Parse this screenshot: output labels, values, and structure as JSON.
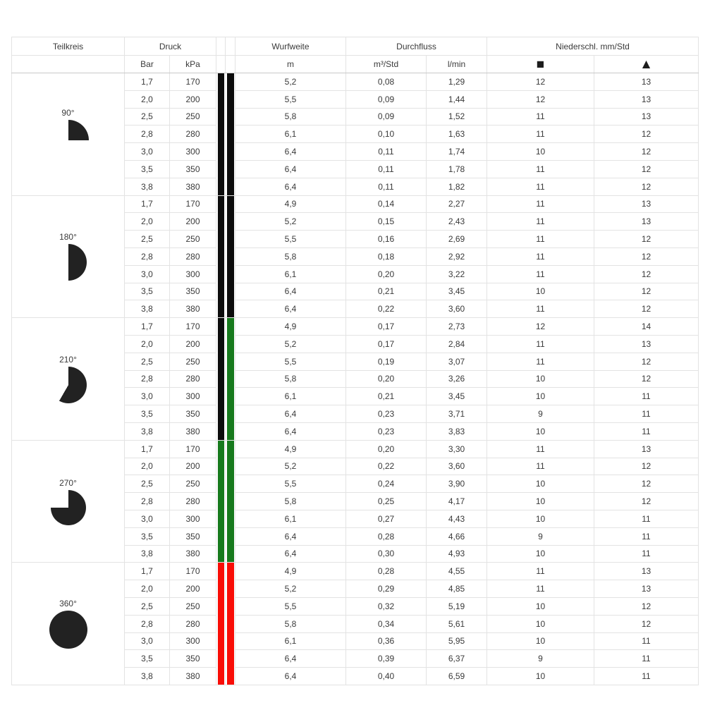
{
  "page": {
    "background": "#ffffff"
  },
  "table": {
    "header": {
      "teilkreis": "Teilkreis",
      "druck": "Druck",
      "wurfweite": "Wurfweite",
      "durchfluss": "Durchfluss",
      "niederschlag": "Niederschl. mm/Std",
      "sub": {
        "bar": "Bar",
        "kpa": "kPa",
        "m": "m",
        "m3std": "m³/Std",
        "lmin": "l/min"
      },
      "symbols": {
        "square": "■",
        "triangle": "▲"
      }
    },
    "colors": {
      "black": "#0c0c0c",
      "green": "#177a1d",
      "red": "#f90d06",
      "icon": "#222222",
      "grid": "#e3e3e3",
      "section_line": "#c9c9c9",
      "text": "#3a3a3a"
    },
    "sections": [
      {
        "angle": "90°",
        "icon": "sector-90-icon",
        "sweep_deg": 90,
        "bar_colors": [
          "black",
          "black"
        ],
        "rows": [
          [
            "1,7",
            "170",
            "5,2",
            "0,08",
            "1,29",
            "12",
            "13"
          ],
          [
            "2,0",
            "200",
            "5,5",
            "0,09",
            "1,44",
            "12",
            "13"
          ],
          [
            "2,5",
            "250",
            "5,8",
            "0,09",
            "1,52",
            "11",
            "13"
          ],
          [
            "2,8",
            "280",
            "6,1",
            "0,10",
            "1,63",
            "11",
            "12"
          ],
          [
            "3,0",
            "300",
            "6,4",
            "0,11",
            "1,74",
            "10",
            "12"
          ],
          [
            "3,5",
            "350",
            "6,4",
            "0,11",
            "1,78",
            "11",
            "12"
          ],
          [
            "3,8",
            "380",
            "6,4",
            "0,11",
            "1,82",
            "11",
            "12"
          ]
        ]
      },
      {
        "angle": "180°",
        "icon": "sector-180-icon",
        "sweep_deg": 180,
        "bar_colors": [
          "black",
          "black"
        ],
        "rows": [
          [
            "1,7",
            "170",
            "4,9",
            "0,14",
            "2,27",
            "11",
            "13"
          ],
          [
            "2,0",
            "200",
            "5,2",
            "0,15",
            "2,43",
            "11",
            "13"
          ],
          [
            "2,5",
            "250",
            "5,5",
            "0,16",
            "2,69",
            "11",
            "12"
          ],
          [
            "2,8",
            "280",
            "5,8",
            "0,18",
            "2,92",
            "11",
            "12"
          ],
          [
            "3,0",
            "300",
            "6,1",
            "0,20",
            "3,22",
            "11",
            "12"
          ],
          [
            "3,5",
            "350",
            "6,4",
            "0,21",
            "3,45",
            "10",
            "12"
          ],
          [
            "3,8",
            "380",
            "6,4",
            "0,22",
            "3,60",
            "11",
            "12"
          ]
        ]
      },
      {
        "angle": "210°",
        "icon": "sector-210-icon",
        "sweep_deg": 210,
        "bar_colors": [
          "black",
          "green"
        ],
        "rows": [
          [
            "1,7",
            "170",
            "4,9",
            "0,17",
            "2,73",
            "12",
            "14"
          ],
          [
            "2,0",
            "200",
            "5,2",
            "0,17",
            "2,84",
            "11",
            "13"
          ],
          [
            "2,5",
            "250",
            "5,5",
            "0,19",
            "3,07",
            "11",
            "12"
          ],
          [
            "2,8",
            "280",
            "5,8",
            "0,20",
            "3,26",
            "10",
            "12"
          ],
          [
            "3,0",
            "300",
            "6,1",
            "0,21",
            "3,45",
            "10",
            "11"
          ],
          [
            "3,5",
            "350",
            "6,4",
            "0,23",
            "3,71",
            "9",
            "11"
          ],
          [
            "3,8",
            "380",
            "6,4",
            "0,23",
            "3,83",
            "10",
            "11"
          ]
        ]
      },
      {
        "angle": "270°",
        "icon": "sector-270-icon",
        "sweep_deg": 270,
        "bar_colors": [
          "green",
          "green"
        ],
        "rows": [
          [
            "1,7",
            "170",
            "4,9",
            "0,20",
            "3,30",
            "11",
            "13"
          ],
          [
            "2,0",
            "200",
            "5,2",
            "0,22",
            "3,60",
            "11",
            "12"
          ],
          [
            "2,5",
            "250",
            "5,5",
            "0,24",
            "3,90",
            "10",
            "12"
          ],
          [
            "2,8",
            "280",
            "5,8",
            "0,25",
            "4,17",
            "10",
            "12"
          ],
          [
            "3,0",
            "300",
            "6,1",
            "0,27",
            "4,43",
            "10",
            "11"
          ],
          [
            "3,5",
            "350",
            "6,4",
            "0,28",
            "4,66",
            "9",
            "11"
          ],
          [
            "3,8",
            "380",
            "6,4",
            "0,30",
            "4,93",
            "10",
            "11"
          ]
        ]
      },
      {
        "angle": "360°",
        "icon": "sector-360-icon",
        "sweep_deg": 360,
        "bar_colors": [
          "red",
          "red"
        ],
        "rows": [
          [
            "1,7",
            "170",
            "4,9",
            "0,28",
            "4,55",
            "11",
            "13"
          ],
          [
            "2,0",
            "200",
            "5,2",
            "0,29",
            "4,85",
            "11",
            "13"
          ],
          [
            "2,5",
            "250",
            "5,5",
            "0,32",
            "5,19",
            "10",
            "12"
          ],
          [
            "2,8",
            "280",
            "5,8",
            "0,34",
            "5,61",
            "10",
            "12"
          ],
          [
            "3,0",
            "300",
            "6,1",
            "0,36",
            "5,95",
            "10",
            "11"
          ],
          [
            "3,5",
            "350",
            "6,4",
            "0,39",
            "6,37",
            "9",
            "11"
          ],
          [
            "3,8",
            "380",
            "6,4",
            "0,40",
            "6,59",
            "10",
            "11"
          ]
        ]
      }
    ]
  }
}
